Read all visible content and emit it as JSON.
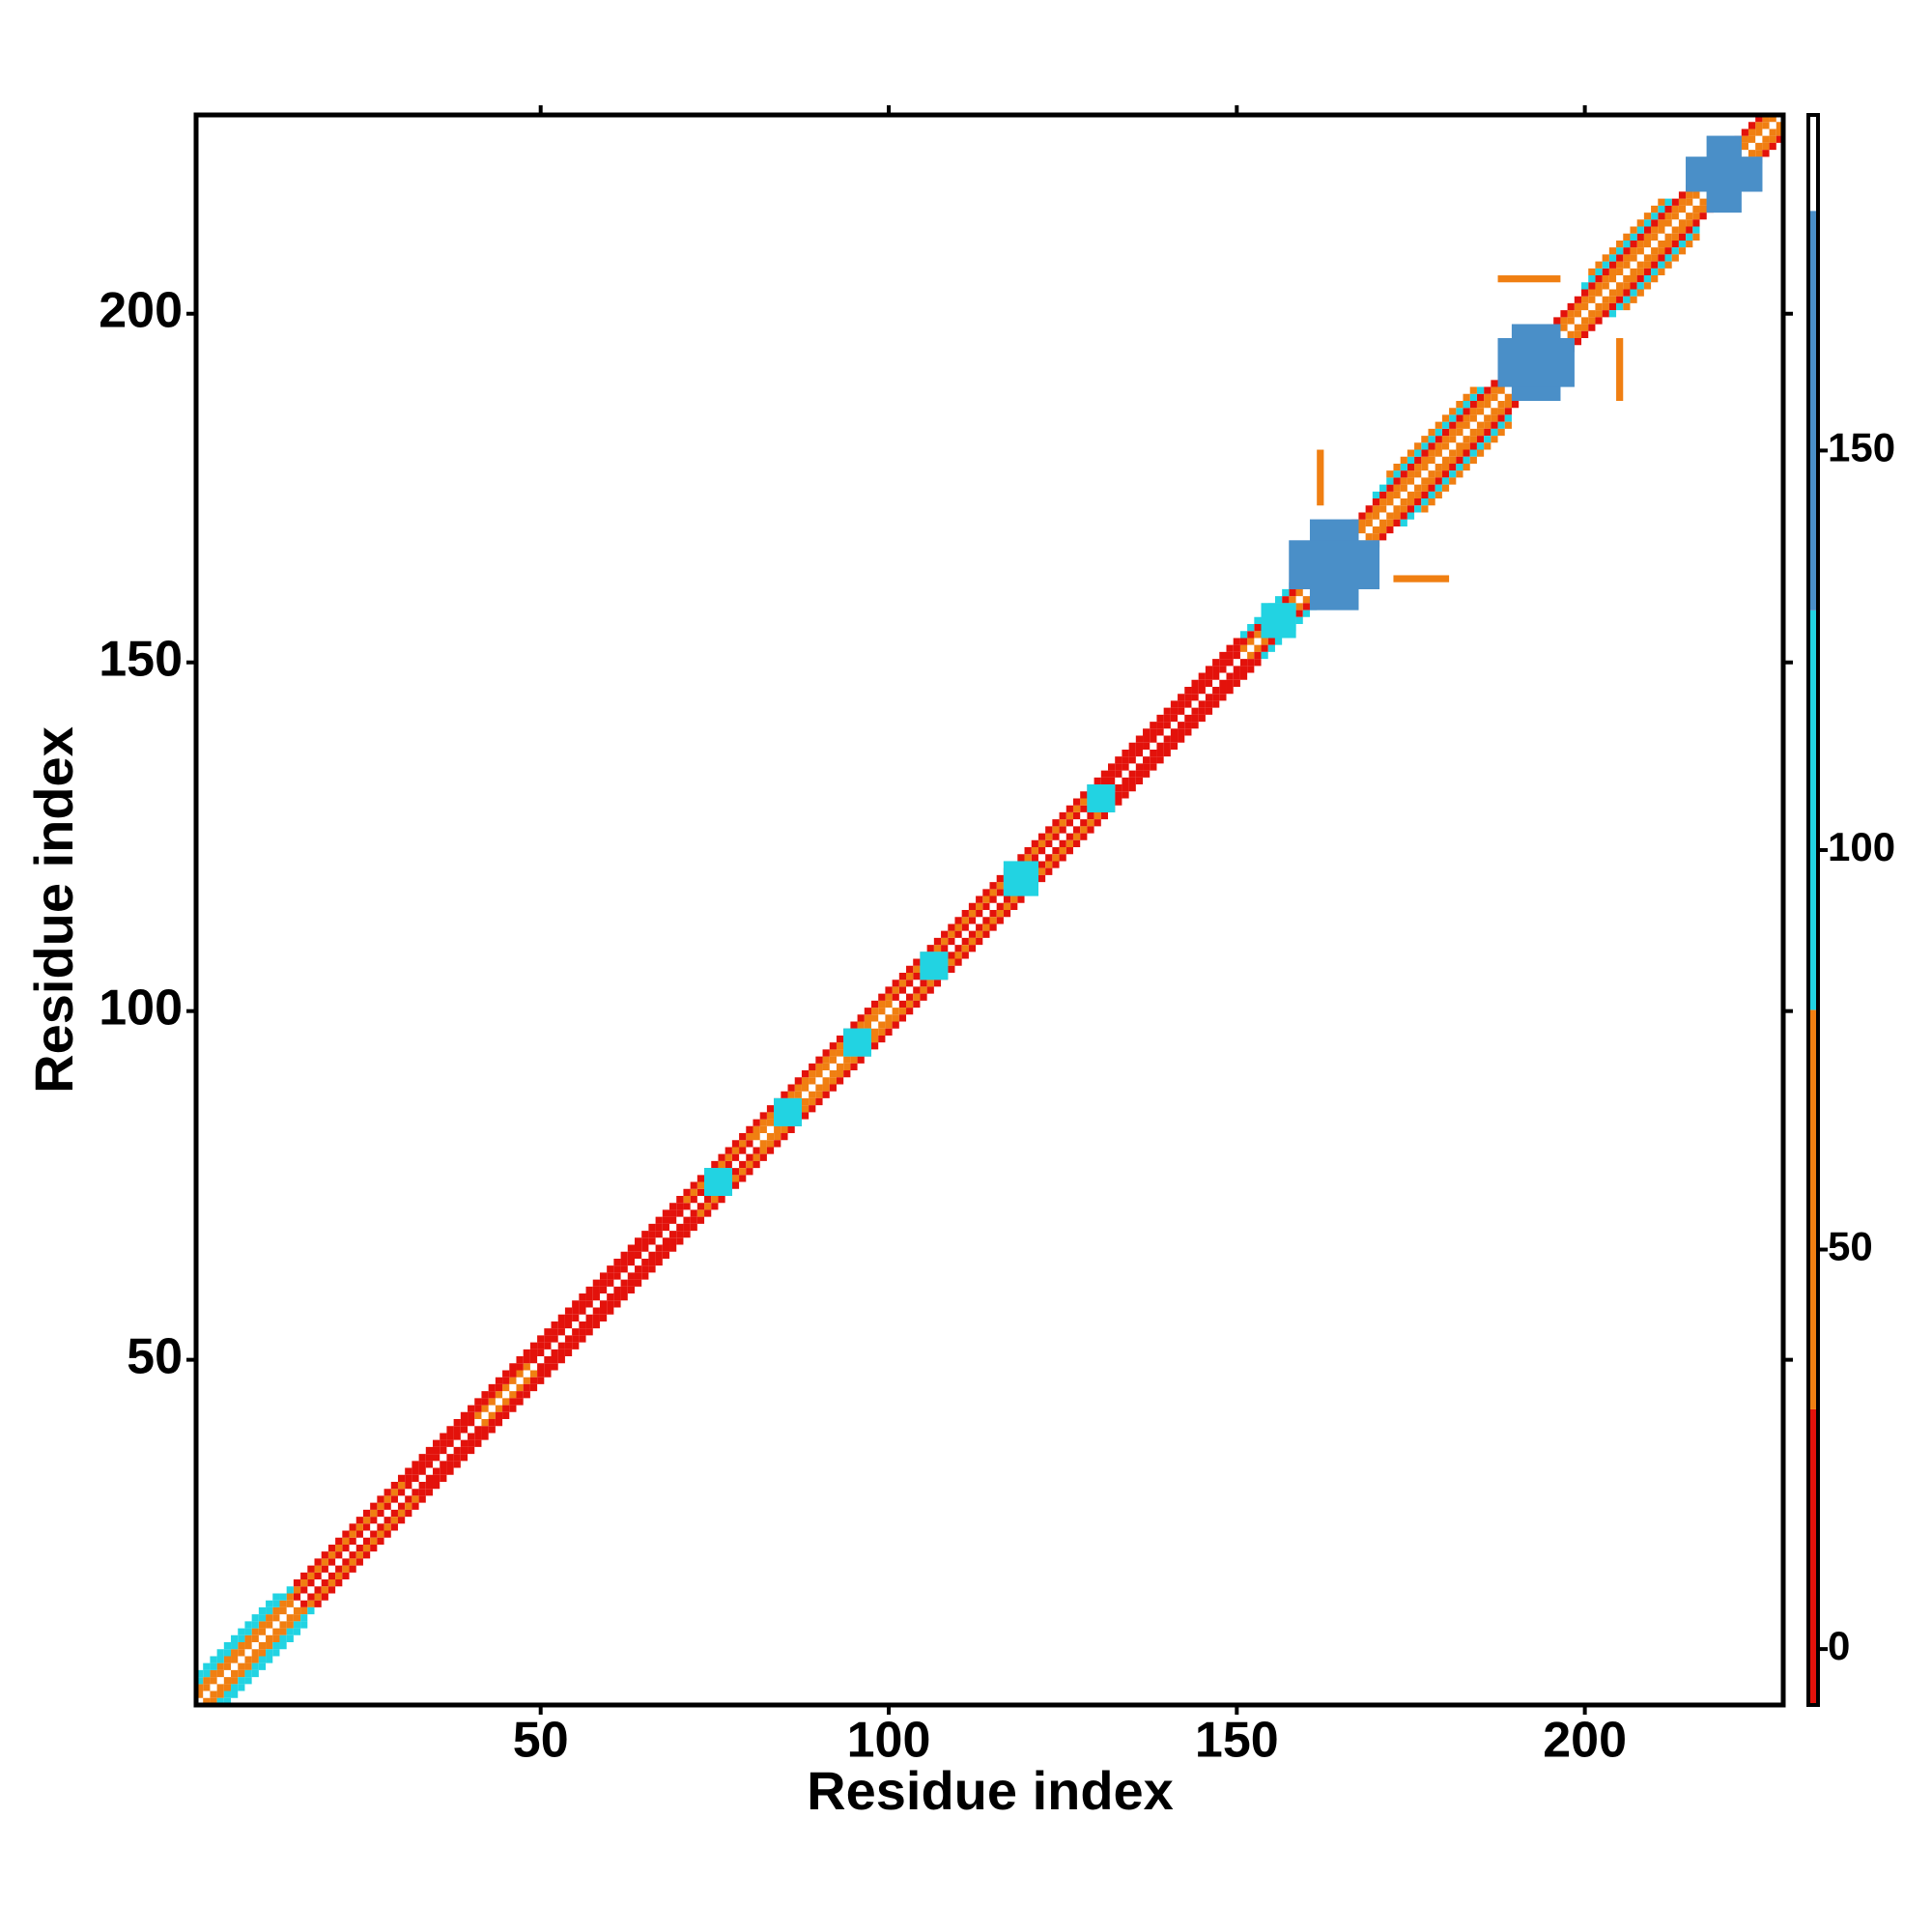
{
  "chart_data": {
    "type": "heatmap",
    "x_label": "Residue index",
    "y_label": "Residue index",
    "xlim": [
      0.5,
      228.5
    ],
    "ylim": [
      0.5,
      228.5
    ],
    "xticks": [
      50,
      100,
      150,
      200
    ],
    "yticks": [
      50,
      100,
      150,
      200
    ],
    "symmetric": true,
    "runs": [
      [
        1,
        228,
        0,
        185
      ],
      [
        1,
        14,
        1,
        55
      ],
      [
        15,
        40,
        1,
        10
      ],
      [
        41,
        48,
        1,
        55
      ],
      [
        49,
        80,
        1,
        10
      ],
      [
        81,
        100,
        1,
        55
      ],
      [
        101,
        150,
        1,
        10
      ],
      [
        151,
        228,
        1,
        55
      ],
      [
        1,
        30,
        2,
        55
      ],
      [
        31,
        70,
        2,
        10
      ],
      [
        71,
        130,
        2,
        55
      ],
      [
        131,
        160,
        2,
        10
      ],
      [
        161,
        228,
        2,
        55
      ],
      [
        1,
        14,
        3,
        100
      ],
      [
        15,
        150,
        3,
        10
      ],
      [
        151,
        160,
        3,
        100
      ],
      [
        161,
        228,
        3,
        10
      ],
      [
        1,
        12,
        4,
        100
      ],
      [
        170,
        185,
        4,
        100
      ],
      [
        200,
        212,
        4,
        100
      ],
      [
        172,
        184,
        5,
        55
      ],
      [
        201,
        211,
        5,
        55
      ]
    ],
    "patches": [
      [
        158,
        170,
        161,
        167,
        140
      ],
      [
        161,
        167,
        158,
        170,
        140
      ],
      [
        154,
        158,
        154,
        158,
        100
      ],
      [
        188,
        198,
        190,
        196,
        140
      ],
      [
        190,
        196,
        188,
        198,
        140
      ],
      [
        215,
        225,
        218,
        222,
        140
      ],
      [
        218,
        222,
        215,
        225,
        140
      ],
      [
        74,
        77,
        74,
        77,
        100
      ],
      [
        84,
        87,
        84,
        87,
        100
      ],
      [
        94,
        97,
        94,
        97,
        100
      ],
      [
        105,
        108,
        105,
        108,
        100
      ],
      [
        117,
        121,
        117,
        121,
        100
      ],
      [
        129,
        132,
        129,
        132,
        100
      ],
      [
        173,
        180,
        162,
        162,
        55
      ],
      [
        188,
        196,
        205,
        205,
        55
      ]
    ],
    "colorbar": {
      "lim": [
        -7,
        192
      ],
      "ticks": [
        0,
        50,
        100,
        150
      ],
      "stops": [
        {
          "from": -7,
          "to": 30,
          "color": "#e3120b"
        },
        {
          "from": 30,
          "to": 80,
          "color": "#f07f12"
        },
        {
          "from": 80,
          "to": 130,
          "color": "#22d3e2"
        },
        {
          "from": 130,
          "to": 180,
          "color": "#4a8fc8"
        },
        {
          "from": 180,
          "to": 192,
          "color": "#ffffff"
        }
      ]
    }
  }
}
